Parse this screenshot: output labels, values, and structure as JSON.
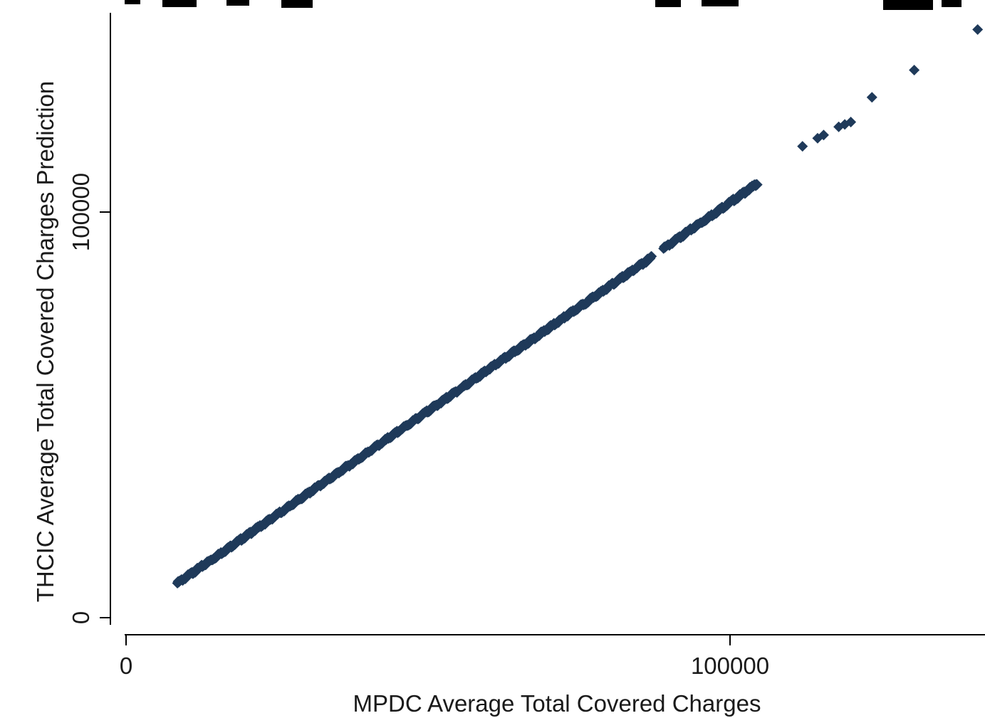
{
  "chart_data": {
    "type": "scatter",
    "xlabel": "MPDC Average Total Covered Charges",
    "ylabel": "THCIC Average Total Covered Charges Prediction",
    "xlim": [
      -2500,
      142000
    ],
    "ylim": [
      -4000,
      149500
    ],
    "x_ticks": [
      {
        "value": 0,
        "label": "0"
      },
      {
        "value": 100000,
        "label": "100000"
      }
    ],
    "y_ticks": [
      {
        "value": 0,
        "label": "0"
      },
      {
        "value": 100000,
        "label": "100000"
      }
    ],
    "grid": false,
    "marker_color": "#1f3a5a",
    "series": [
      {
        "segments": [
          {
            "x_start": 8500,
            "x_end": 87000,
            "y_start": 8500,
            "y_end": 88800,
            "count": 720
          },
          {
            "x_start": 89000,
            "x_end": 104500,
            "y_start": 91000,
            "y_end": 107000,
            "count": 130
          }
        ],
        "points": [
          {
            "x": 112000,
            "y": 116200
          },
          {
            "x": 114500,
            "y": 118200
          },
          {
            "x": 115500,
            "y": 119000
          },
          {
            "x": 118000,
            "y": 121000
          },
          {
            "x": 119000,
            "y": 121600
          },
          {
            "x": 120000,
            "y": 122200
          },
          {
            "x": 123500,
            "y": 128300
          },
          {
            "x": 130500,
            "y": 135000
          },
          {
            "x": 141000,
            "y": 145000
          }
        ]
      }
    ]
  }
}
